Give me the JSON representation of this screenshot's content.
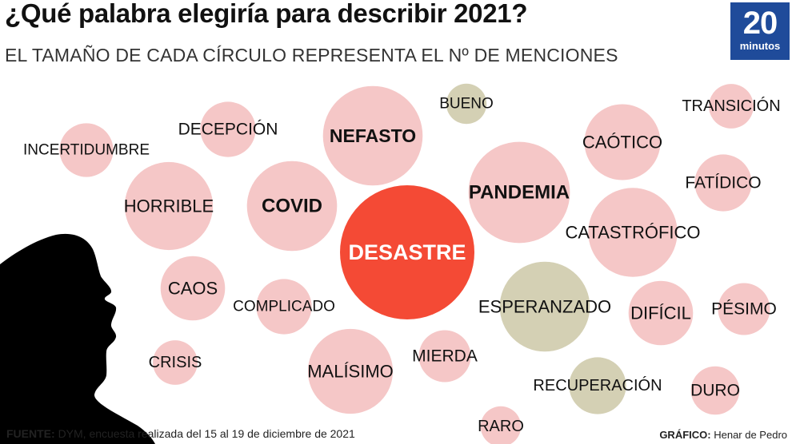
{
  "header": {
    "title": "¿Qué palabra elegiría para describir 2021?",
    "subtitle": "EL TAMAÑO DE CADA CÍRCULO REPRESENTA EL Nº DE MENCIONES"
  },
  "logo": {
    "number": "20",
    "word": "minutos"
  },
  "footer": {
    "source_label": "FUENTE:",
    "source_text": "DYM, encuesta realizada del 15 al 19 de diciembre de 2021",
    "credit_label": "GRÁFICO:",
    "credit_text": "Henar de Pedro"
  },
  "colors": {
    "highlight": "#f44a35",
    "negative": "#f5c7c7",
    "positive": "#d4d0b4",
    "brand": "#1f4b9a"
  },
  "chart_data": {
    "type": "bubble",
    "title": "¿Qué palabra elegiría para describir 2021?",
    "subtitle": "EL TAMAÑO DE CADA CÍRCULO REPRESENTA EL Nº DE MENCIONES",
    "encoding": "bubble area = number of mentions (relative)",
    "bubbles": [
      {
        "word": "DESASTRE",
        "size": 100,
        "tone": "highlight"
      },
      {
        "word": "PANDEMIA",
        "size": 57,
        "tone": "negative"
      },
      {
        "word": "NEFASTO",
        "size": 55,
        "tone": "negative"
      },
      {
        "word": "COVID",
        "size": 45,
        "tone": "negative"
      },
      {
        "word": "ESPERANZADO",
        "size": 45,
        "tone": "positive"
      },
      {
        "word": "CATASTRÓFICO",
        "size": 44,
        "tone": "negative"
      },
      {
        "word": "HORRIBLE",
        "size": 43,
        "tone": "negative"
      },
      {
        "word": "MALÍSIMO",
        "size": 40,
        "tone": "negative"
      },
      {
        "word": "CAÓTICO",
        "size": 32,
        "tone": "negative"
      },
      {
        "word": "DIFÍCIL",
        "size": 23,
        "tone": "negative"
      },
      {
        "word": "CAOS",
        "size": 23,
        "tone": "negative"
      },
      {
        "word": "COMPLICADO",
        "size": 17,
        "tone": "negative"
      },
      {
        "word": "FATÍDICO",
        "size": 18,
        "tone": "negative"
      },
      {
        "word": "MIERDA",
        "size": 15,
        "tone": "negative"
      },
      {
        "word": "DECEPCIÓN",
        "size": 17,
        "tone": "negative"
      },
      {
        "word": "INCERTIDUMBRE",
        "size": 16,
        "tone": "negative"
      },
      {
        "word": "RECUPERACIÓN",
        "size": 18,
        "tone": "positive"
      },
      {
        "word": "PÉSIMO",
        "size": 15,
        "tone": "negative"
      },
      {
        "word": "DURO",
        "size": 13,
        "tone": "negative"
      },
      {
        "word": "TRANSICIÓN",
        "size": 11,
        "tone": "negative"
      },
      {
        "word": "CRISIS",
        "size": 11,
        "tone": "negative"
      },
      {
        "word": "BUENO",
        "size": 9,
        "tone": "positive"
      },
      {
        "word": "RARO",
        "size": 9,
        "tone": "negative"
      }
    ]
  }
}
